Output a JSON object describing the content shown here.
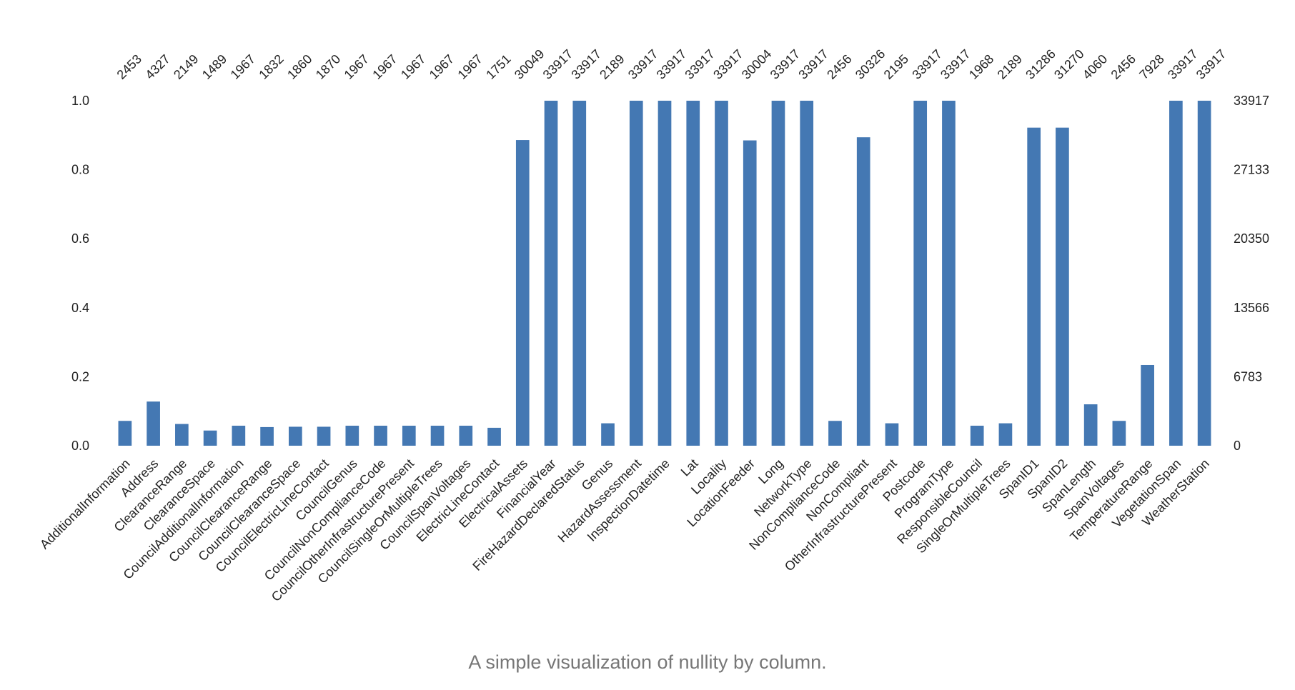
{
  "caption": "A simple visualization of nullity by column.",
  "colors": {
    "bar": "#4478b3",
    "text": "#222222",
    "caption": "#777777"
  },
  "chart_data": {
    "type": "bar",
    "title": "",
    "xlabel": "",
    "ylabel": "",
    "ylim": [
      0,
      1.0
    ],
    "grid": false,
    "left_ticks": [
      "0.0",
      "0.2",
      "0.4",
      "0.6",
      "0.8",
      "1.0"
    ],
    "right_ticks": [
      "0",
      "6783",
      "13566",
      "20350",
      "27133",
      "33917"
    ],
    "total_rows": 33917,
    "categories": [
      "AdditionalInformation",
      "Address",
      "ClearanceRange",
      "ClearanceSpace",
      "CouncilAdditionalInformation",
      "CouncilClearanceRange",
      "CouncilClearanceSpace",
      "CouncilElectricLineContact",
      "CouncilGenus",
      "CouncilNonComplianceCode",
      "CouncilOtherInfrastructurePresent",
      "CouncilSingleOrMultipleTrees",
      "CouncilSpanVoltages",
      "ElectricLineContact",
      "ElectricalAssets",
      "FinancialYear",
      "FireHazardDeclaredStatus",
      "Genus",
      "HazardAssessment",
      "InspectionDatetime",
      "Lat",
      "Locality",
      "LocationFeeder",
      "Long",
      "NetworkType",
      "NonComplianceCode",
      "NonCompliant",
      "OtherInfrastructurePresent",
      "Postcode",
      "ProgramType",
      "ResponsibleCouncil",
      "SingleOrMultipleTrees",
      "SpanID1",
      "SpanID2",
      "SpanLength",
      "SpanVoltages",
      "TemperatureRange",
      "VegetationSpan",
      "WeatherStation"
    ],
    "counts": [
      "2453",
      "4327",
      "2149",
      "1489",
      "1967",
      "1832",
      "1860",
      "1870",
      "1967",
      "1967",
      "1967",
      "1967",
      "1967",
      "1751",
      "30049",
      "33917",
      "33917",
      "2189",
      "33917",
      "33917",
      "33917",
      "33917",
      "30004",
      "33917",
      "33917",
      "2456",
      "30326",
      "2195",
      "33917",
      "33917",
      "1968",
      "2189",
      "31286",
      "31270",
      "4060",
      "2456",
      "7928",
      "33917",
      "33917"
    ],
    "series": [
      {
        "values": [
          0.072,
          0.128,
          0.063,
          0.044,
          0.058,
          0.054,
          0.055,
          0.055,
          0.058,
          0.058,
          0.058,
          0.058,
          0.058,
          0.052,
          0.886,
          1.0,
          1.0,
          0.065,
          1.0,
          1.0,
          1.0,
          1.0,
          0.885,
          1.0,
          1.0,
          0.072,
          0.894,
          0.065,
          1.0,
          1.0,
          0.058,
          0.065,
          0.922,
          0.922,
          0.12,
          0.072,
          0.234,
          1.0,
          1.0
        ]
      }
    ]
  }
}
